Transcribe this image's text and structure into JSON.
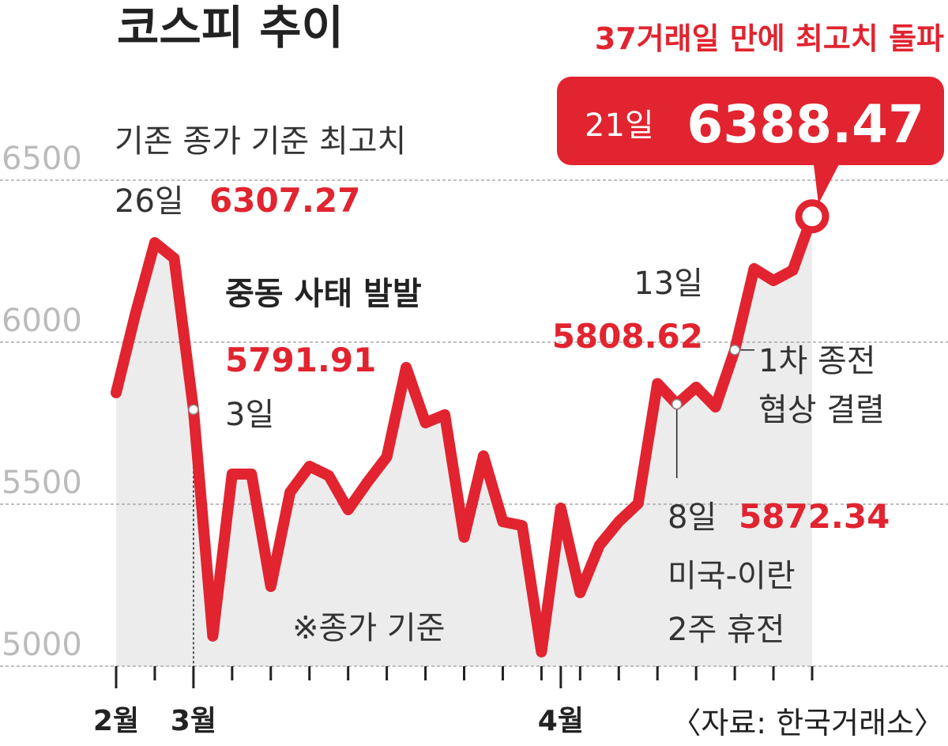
{
  "chart_data": {
    "type": "line",
    "title": "코스피 추이",
    "subtitle": "37거래일 만에 최고치 돌파",
    "source": "〈자료: 한국거래소〉",
    "note": "※종가 기준",
    "categories": [
      "2월",
      null,
      null,
      null,
      "3월",
      null,
      null,
      null,
      null,
      null,
      null,
      null,
      null,
      null,
      null,
      null,
      null,
      null,
      null,
      null,
      null,
      null,
      null,
      "4월",
      null,
      null,
      null,
      null,
      null,
      null,
      null,
      null,
      null,
      null,
      null,
      null,
      null
    ],
    "series": [
      {
        "name": "코스피",
        "color": "#e1242f",
        "values": [
          5844,
          6088,
          6307.27,
          6259,
          5791.91,
          5093,
          5593,
          5593,
          5246,
          5537,
          5617,
          5588,
          5483,
          5568,
          5646,
          5922,
          5751,
          5776,
          5398,
          5649,
          5446,
          5434,
          5044,
          5488,
          5227,
          5373,
          5446,
          5502,
          5872.34,
          5808.62,
          5861,
          5800,
          5976,
          6227,
          6190,
          6222,
          6388.47
        ]
      }
    ],
    "ylim": [
      5000,
      6850
    ],
    "yticks": [
      5000,
      5500,
      6000,
      6500
    ],
    "grid": true,
    "annotations": {
      "peak_old": {
        "text": "기존 종가 기준 최고치",
        "day": "26일",
        "value": "6307.27"
      },
      "mideast": {
        "text": "중동 사태 발발",
        "value": "5791.91",
        "day": "3일"
      },
      "d13": {
        "day": "13일",
        "value": "5808.62"
      },
      "talks": {
        "line1": "1차 종전",
        "line2": "협상 결렬"
      },
      "d8": {
        "day": "8일",
        "value": "5872.34",
        "line1": "미국-이란",
        "line2": "2주 휴전"
      },
      "record": {
        "day": "21일",
        "value": "6388.47"
      }
    }
  }
}
